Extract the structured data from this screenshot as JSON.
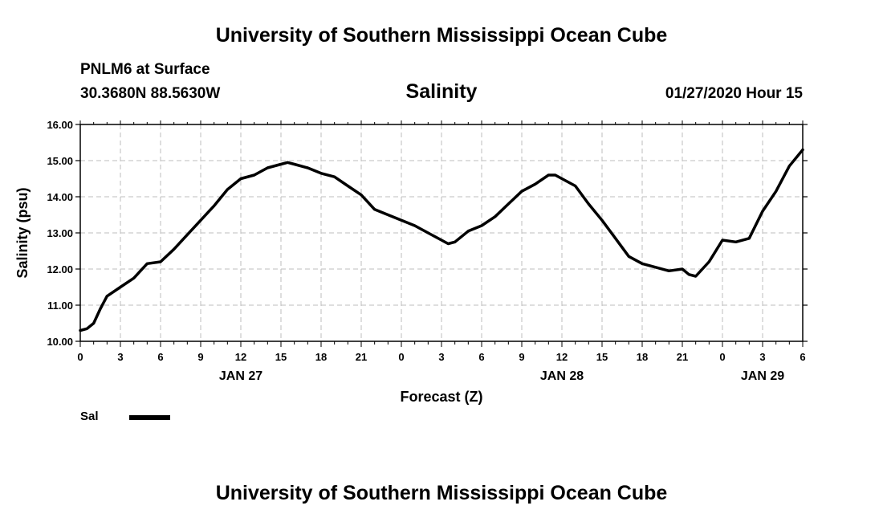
{
  "header": {
    "main_title": "University of Southern Mississippi Ocean Cube",
    "station": "PNLM6 at Surface",
    "coords": "30.3680N 88.5630W",
    "chart_title": "Salinity",
    "timestamp": "01/27/2020 Hour 15"
  },
  "footer": {
    "title": "University of Southern Mississippi Ocean Cube"
  },
  "legend": {
    "label": "Sal",
    "color": "#000000"
  },
  "chart_data": {
    "type": "line",
    "title": "Salinity",
    "xlabel": "Forecast (Z)",
    "ylabel": "Salinity (psu)",
    "ylim": [
      10,
      16
    ],
    "xlim": [
      0,
      54
    ],
    "grid": true,
    "legend_position": "bottom-left",
    "y_ticks": [
      "10.00",
      "11.00",
      "12.00",
      "13.00",
      "14.00",
      "15.00",
      "16.00"
    ],
    "x_ticks": [
      "0",
      "3",
      "6",
      "9",
      "12",
      "15",
      "18",
      "21",
      "0",
      "3",
      "6",
      "9",
      "12",
      "15",
      "18",
      "21",
      "0",
      "3",
      "6"
    ],
    "day_labels": [
      {
        "label": "JAN 27",
        "x": 12
      },
      {
        "label": "JAN 28",
        "x": 36
      },
      {
        "label": "JAN 29",
        "x": 51
      }
    ],
    "series": [
      {
        "name": "Sal",
        "x": [
          0,
          0.5,
          1,
          1.5,
          2,
          3,
          4,
          5,
          6,
          7,
          8,
          9,
          10,
          11,
          12,
          13,
          14,
          15,
          15.5,
          16,
          17,
          18,
          19,
          20,
          21,
          22,
          23,
          24,
          25,
          26,
          27,
          27.5,
          28,
          29,
          30,
          31,
          32,
          33,
          34,
          35,
          35.5,
          36,
          37,
          38,
          39,
          40,
          41,
          42,
          43,
          44,
          45,
          45.5,
          46,
          47,
          48,
          49,
          50,
          51,
          52,
          53,
          54
        ],
        "values": [
          10.3,
          10.35,
          10.5,
          10.9,
          11.25,
          11.5,
          11.75,
          12.15,
          12.2,
          12.55,
          12.95,
          13.35,
          13.75,
          14.2,
          14.5,
          14.6,
          14.8,
          14.9,
          14.95,
          14.9,
          14.8,
          14.65,
          14.55,
          14.3,
          14.05,
          13.65,
          13.5,
          13.35,
          13.2,
          13.0,
          12.8,
          12.7,
          12.75,
          13.05,
          13.2,
          13.45,
          13.8,
          14.15,
          14.35,
          14.6,
          14.6,
          14.5,
          14.3,
          13.8,
          13.35,
          12.85,
          12.35,
          12.15,
          12.05,
          11.95,
          12.0,
          11.85,
          11.8,
          12.2,
          12.8,
          12.75,
          12.85,
          13.6,
          14.15,
          14.85,
          15.3
        ]
      }
    ]
  }
}
